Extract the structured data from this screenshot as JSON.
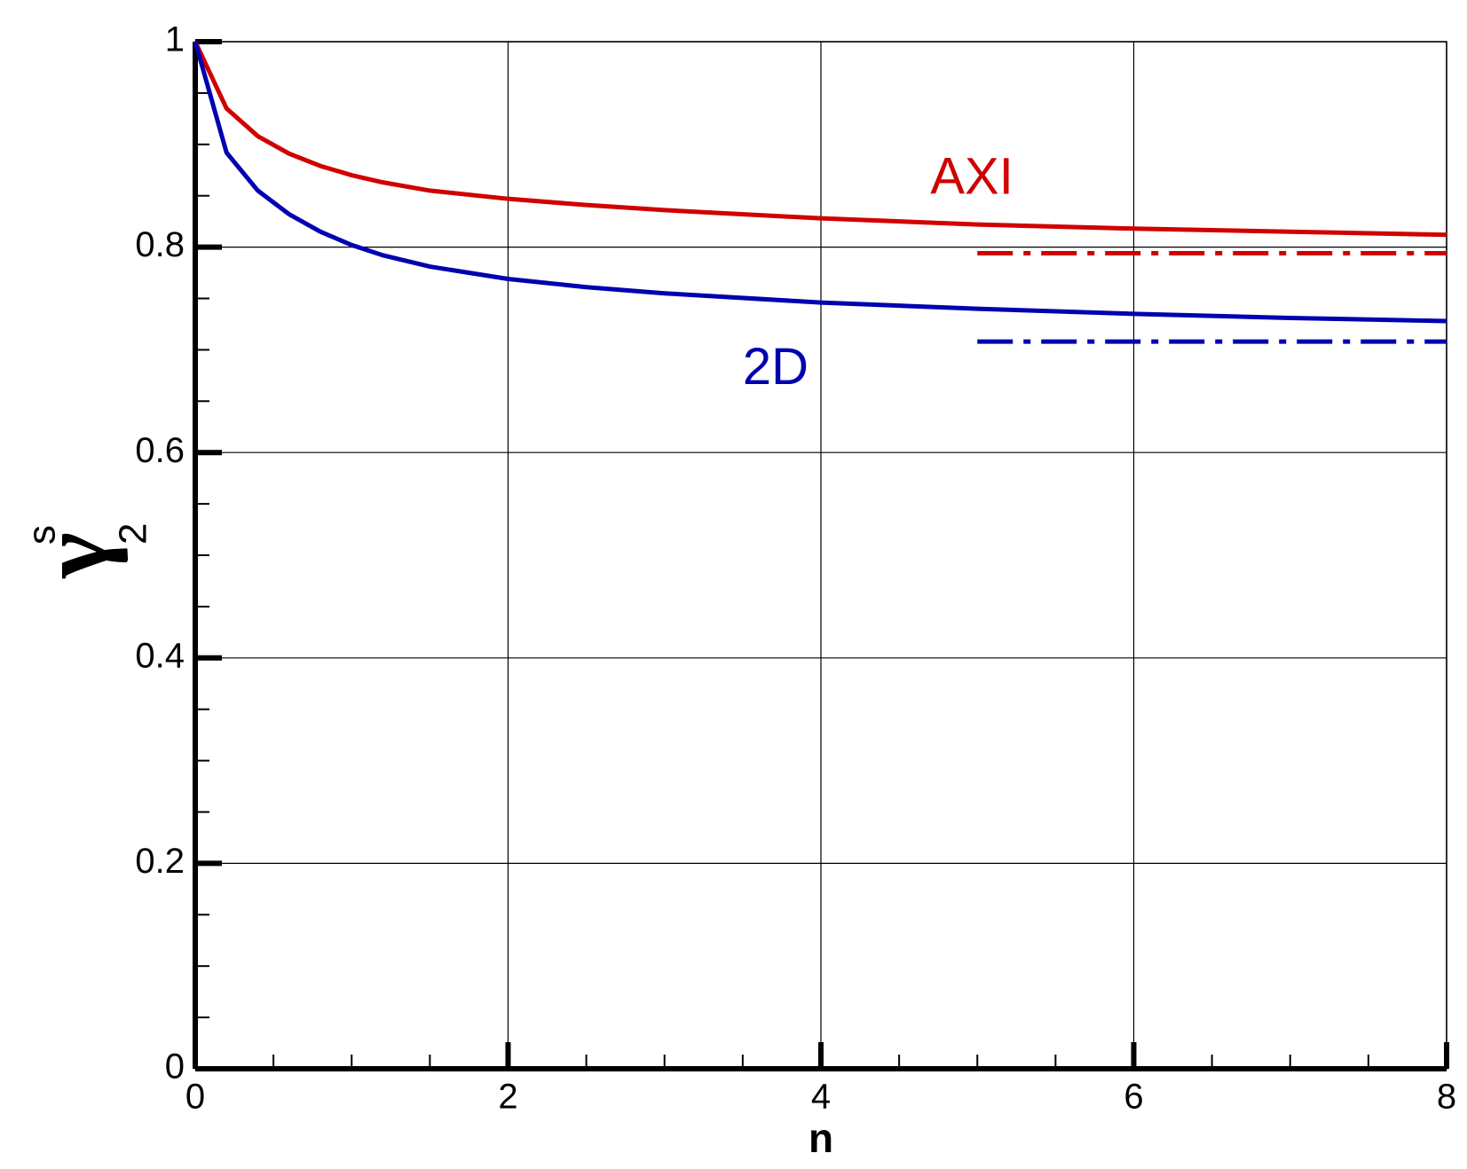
{
  "chart_data": {
    "type": "line",
    "xlabel": "n",
    "ylabel": {
      "symbol": "γ",
      "sub": "2",
      "sup": "s"
    },
    "xlim": [
      0,
      8
    ],
    "xticks": [
      0,
      2,
      4,
      6,
      8
    ],
    "xminorticks": [
      0.5,
      1,
      1.5,
      2.5,
      3,
      3.5,
      4.5,
      5,
      5.5,
      6.5,
      7,
      7.5
    ],
    "ylim": [
      0,
      1
    ],
    "yticks": [
      0,
      0.2,
      0.4,
      0.6,
      0.8,
      1
    ],
    "yminorticks": [
      0.05,
      0.1,
      0.15,
      0.25,
      0.3,
      0.35,
      0.45,
      0.5,
      0.55,
      0.65,
      0.7,
      0.75,
      0.85,
      0.9,
      0.95
    ],
    "grid": true,
    "series": [
      {
        "name": "AXI",
        "color": "#d00000",
        "dash": "solid",
        "x": [
          0,
          0.2,
          0.4,
          0.6,
          0.8,
          1,
          1.2,
          1.5,
          2,
          2.5,
          3,
          4,
          5,
          6,
          7,
          8
        ],
        "values": [
          1,
          0.935,
          0.908,
          0.891,
          0.879,
          0.87,
          0.863,
          0.855,
          0.847,
          0.841,
          0.836,
          0.828,
          0.822,
          0.818,
          0.815,
          0.812
        ]
      },
      {
        "name": "2D",
        "color": "#0000b0",
        "dash": "solid",
        "x": [
          0,
          0.2,
          0.4,
          0.6,
          0.8,
          1,
          1.2,
          1.5,
          2,
          2.5,
          3,
          4,
          5,
          6,
          7,
          8
        ],
        "values": [
          1,
          0.892,
          0.855,
          0.832,
          0.815,
          0.802,
          0.792,
          0.781,
          0.769,
          0.761,
          0.755,
          0.746,
          0.74,
          0.735,
          0.731,
          0.728
        ]
      },
      {
        "color": "#d00000",
        "dash": "dashdot",
        "x": [
          5,
          8
        ],
        "values": [
          0.794,
          0.794
        ]
      },
      {
        "color": "#0000b0",
        "dash": "dashdot",
        "x": [
          5,
          8
        ],
        "values": [
          0.708,
          0.708
        ]
      }
    ],
    "annotations": [
      {
        "series": 0,
        "x": 4.7,
        "y": 0.865
      },
      {
        "series": 1,
        "x": 3.5,
        "y": 0.68
      }
    ]
  }
}
